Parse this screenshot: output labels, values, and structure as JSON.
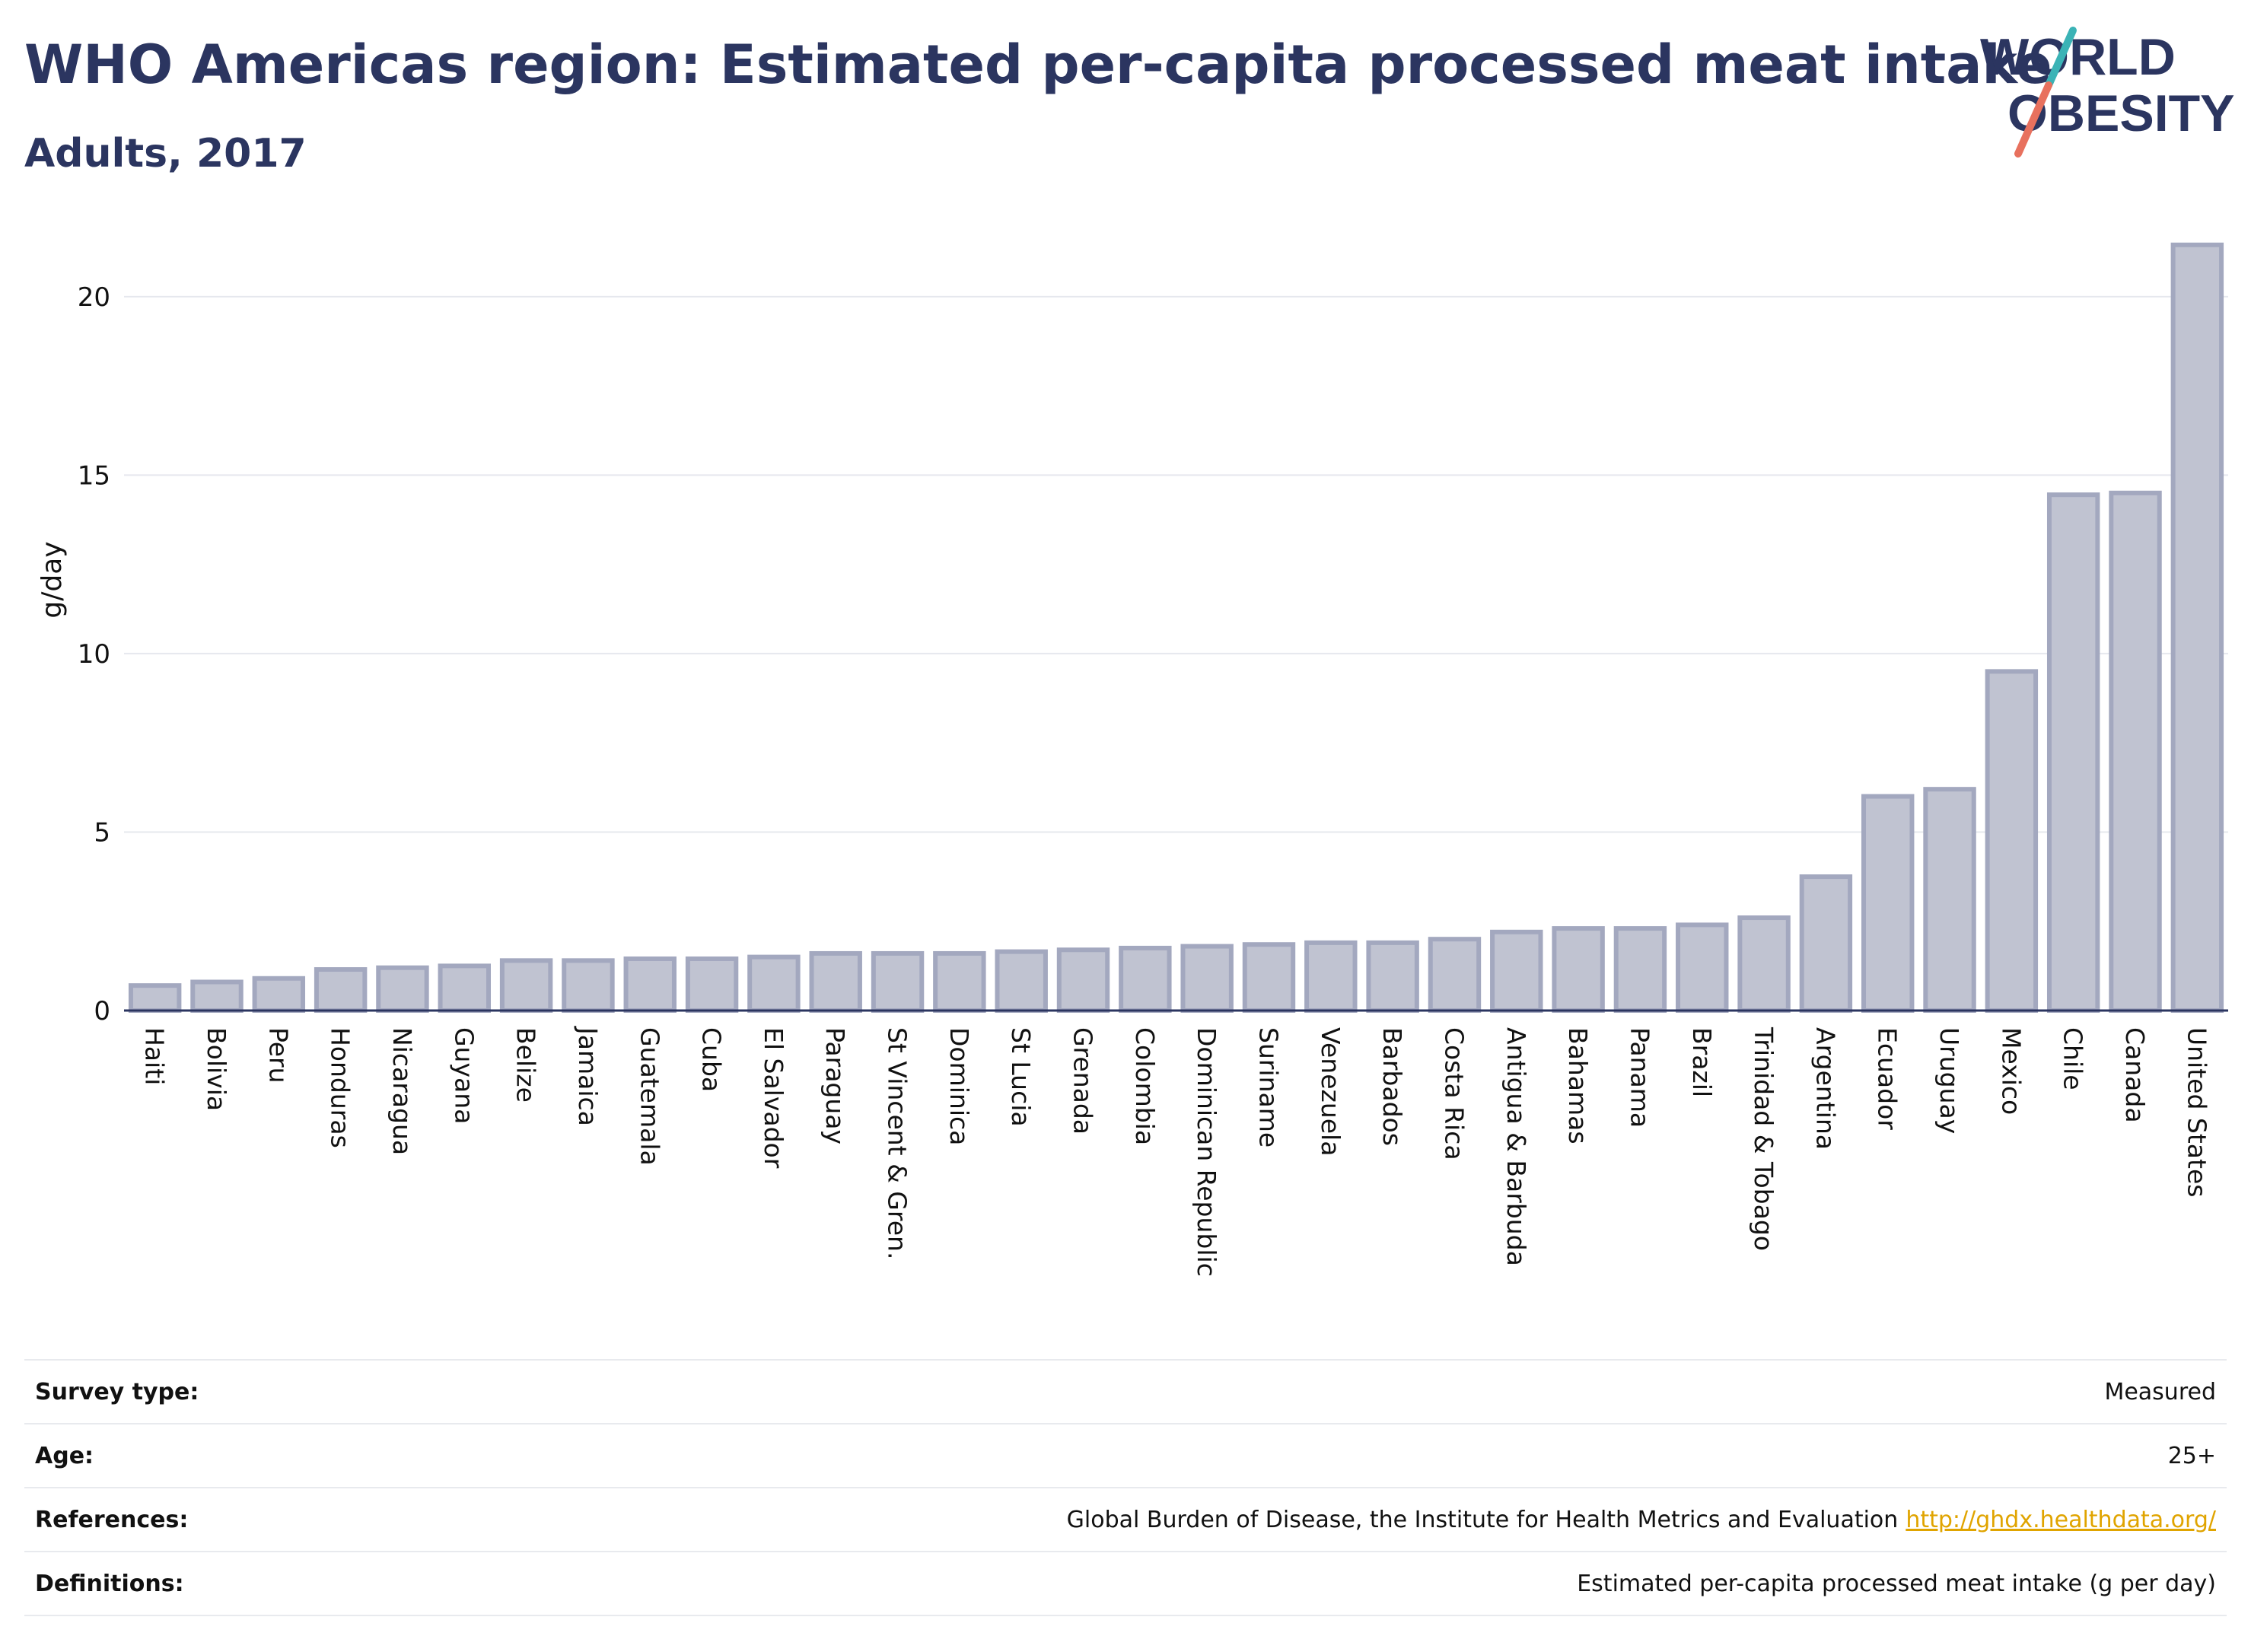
{
  "header": {
    "title": "WHO Americas region: Estimated per-capita processed meat intake",
    "subtitle": "Adults, 2017"
  },
  "logo": {
    "line1": "WORLD",
    "line2": "OBESITY",
    "colors": {
      "text": "#2b3560",
      "accent_teal": "#3bb3b6",
      "accent_coral": "#e8715e"
    }
  },
  "chart_data": {
    "type": "bar",
    "ylabel": "g/day",
    "xlabel": "",
    "ylim": [
      0,
      22
    ],
    "yticks": [
      0,
      5,
      10,
      15,
      20
    ],
    "grid": true,
    "bar_color": "#c0c3d1",
    "bar_border": "#a3a8bf",
    "categories": [
      "Haiti",
      "Bolivia",
      "Peru",
      "Honduras",
      "Nicaragua",
      "Guyana",
      "Belize",
      "Jamaica",
      "Guatemala",
      "Cuba",
      "El Salvador",
      "Paraguay",
      "St Vincent & Gren.",
      "Dominica",
      "St Lucia",
      "Grenada",
      "Colombia",
      "Dominican Republic",
      "Suriname",
      "Venezuela",
      "Barbados",
      "Costa Rica",
      "Antigua & Barbuda",
      "Bahamas",
      "Panama",
      "Brazil",
      "Trinidad & Tobago",
      "Argentina",
      "Ecuador",
      "Uruguay",
      "Mexico",
      "Chile",
      "Canada",
      "United States"
    ],
    "values": [
      0.7,
      0.8,
      0.9,
      1.15,
      1.2,
      1.25,
      1.4,
      1.4,
      1.45,
      1.45,
      1.5,
      1.6,
      1.6,
      1.6,
      1.65,
      1.7,
      1.75,
      1.8,
      1.85,
      1.9,
      1.9,
      2.0,
      2.2,
      2.3,
      2.3,
      2.4,
      2.6,
      3.75,
      6.0,
      6.2,
      9.5,
      14.45,
      14.5,
      21.45
    ]
  },
  "meta": {
    "rows": [
      {
        "label": "Survey type:",
        "value": "Measured"
      },
      {
        "label": "Age:",
        "value": "25+"
      },
      {
        "label": "References:",
        "value": "Global Burden of Disease, the Institute for Health Metrics and Evaluation",
        "link": "http://ghdx.healthdata.org/"
      },
      {
        "label": "Definitions:",
        "value": "Estimated per-capita processed meat intake (g per day)"
      }
    ]
  }
}
